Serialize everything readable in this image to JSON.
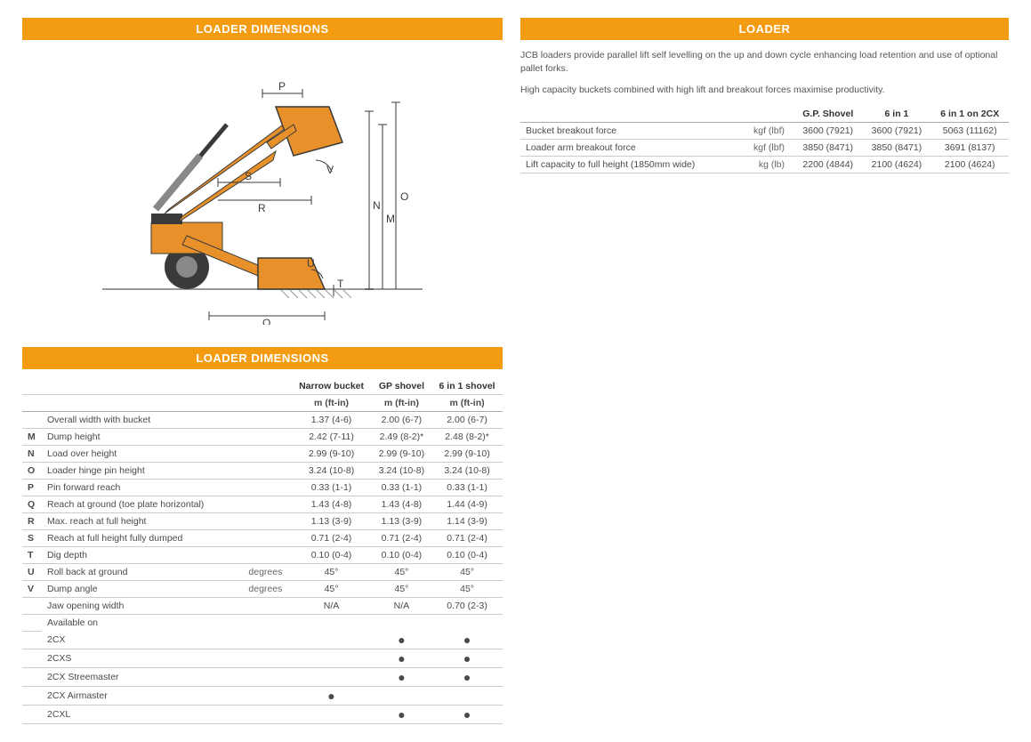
{
  "colors": {
    "header_bg": "#f39c12",
    "header_text": "#ffffff",
    "body_text": "#4a4a4a",
    "border": "#cccccc",
    "machine_orange": "#e8902a",
    "machine_dark": "#3a3a3a",
    "dim_line": "#3a3a3a"
  },
  "left": {
    "header1": "LOADER DIMENSIONS",
    "header2": "LOADER DIMENSIONS",
    "diagram": {
      "letters": [
        "P",
        "S",
        "R",
        "V",
        "N",
        "M",
        "O",
        "U",
        "T",
        "Q"
      ]
    },
    "dimTable": {
      "colHeaders": [
        "Narrow bucket",
        "GP shovel",
        "6 in 1 shovel"
      ],
      "unitRow": [
        "m (ft-in)",
        "m (ft-in)",
        "m (ft-in)"
      ],
      "rows": [
        {
          "letter": "",
          "label": "Overall width with bucket",
          "unit": "",
          "vals": [
            "1.37 (4-6)",
            "2.00 (6-7)",
            "2.00 (6-7)"
          ]
        },
        {
          "letter": "M",
          "label": "Dump height",
          "unit": "",
          "vals": [
            "2.42 (7-11)",
            "2.49 (8-2)*",
            "2.48 (8-2)*"
          ]
        },
        {
          "letter": "N",
          "label": "Load over height",
          "unit": "",
          "vals": [
            "2.99 (9-10)",
            "2.99 (9-10)",
            "2.99 (9-10)"
          ]
        },
        {
          "letter": "O",
          "label": "Loader hinge pin height",
          "unit": "",
          "vals": [
            "3.24 (10-8)",
            "3.24 (10-8)",
            "3.24 (10-8)"
          ]
        },
        {
          "letter": "P",
          "label": "Pin forward reach",
          "unit": "",
          "vals": [
            "0.33 (1-1)",
            "0.33 (1-1)",
            "0.33 (1-1)"
          ]
        },
        {
          "letter": "Q",
          "label": "Reach at ground (toe plate horizontal)",
          "unit": "",
          "vals": [
            "1.43 (4-8)",
            "1.43 (4-8)",
            "1.44 (4-9)"
          ]
        },
        {
          "letter": "R",
          "label": "Max. reach at full height",
          "unit": "",
          "vals": [
            "1.13 (3-9)",
            "1.13 (3-9)",
            "1.14 (3-9)"
          ]
        },
        {
          "letter": "S",
          "label": "Reach at full height fully dumped",
          "unit": "",
          "vals": [
            "0.71 (2-4)",
            "0.71 (2-4)",
            "0.71 (2-4)"
          ]
        },
        {
          "letter": "T",
          "label": "Dig depth",
          "unit": "",
          "vals": [
            "0.10 (0-4)",
            "0.10 (0-4)",
            "0.10 (0-4)"
          ]
        },
        {
          "letter": "U",
          "label": "Roll back at ground",
          "unit": "degrees",
          "vals": [
            "45°",
            "45°",
            "45°"
          ]
        },
        {
          "letter": "V",
          "label": "Dump angle",
          "unit": "degrees",
          "vals": [
            "45°",
            "45°",
            "45°"
          ]
        },
        {
          "letter": "",
          "label": "Jaw opening width",
          "unit": "",
          "vals": [
            "N/A",
            "N/A",
            "0.70 (2-3)"
          ]
        }
      ],
      "availHeader": "Available on",
      "availRows": [
        {
          "label": "2CX",
          "vals": [
            "",
            "●",
            "●"
          ]
        },
        {
          "label": "2CXS",
          "vals": [
            "",
            "●",
            "●"
          ]
        },
        {
          "label": "2CX Streemaster",
          "vals": [
            "",
            "●",
            "●"
          ]
        },
        {
          "label": "2CX Airmaster",
          "vals": [
            "●",
            "",
            ""
          ]
        },
        {
          "label": "2CXL",
          "vals": [
            "",
            "●",
            "●"
          ]
        }
      ]
    }
  },
  "right": {
    "header": "LOADER",
    "desc1": "JCB loaders provide parallel lift self levelling on the up and down cycle enhancing load retention and use of optional pallet forks.",
    "desc2": "High capacity buckets combined with high lift and breakout forces maximise productivity.",
    "loaderTable": {
      "colHeaders": [
        "G.P. Shovel",
        "6 in 1",
        "6 in 1 on 2CX"
      ],
      "rows": [
        {
          "label": "Bucket breakout force",
          "unit": "kgf (lbf)",
          "vals": [
            "3600 (7921)",
            "3600 (7921)",
            "5063 (11162)"
          ]
        },
        {
          "label": "Loader arm breakout force",
          "unit": "kgf (lbf)",
          "vals": [
            "3850 (8471)",
            "3850 (8471)",
            "3691 (8137)"
          ]
        },
        {
          "label": "Lift capacity to full height (1850mm wide)",
          "unit": "kg (lb)",
          "vals": [
            "2200 (4844)",
            "2100 (4624)",
            "2100 (4624)"
          ]
        }
      ]
    }
  }
}
